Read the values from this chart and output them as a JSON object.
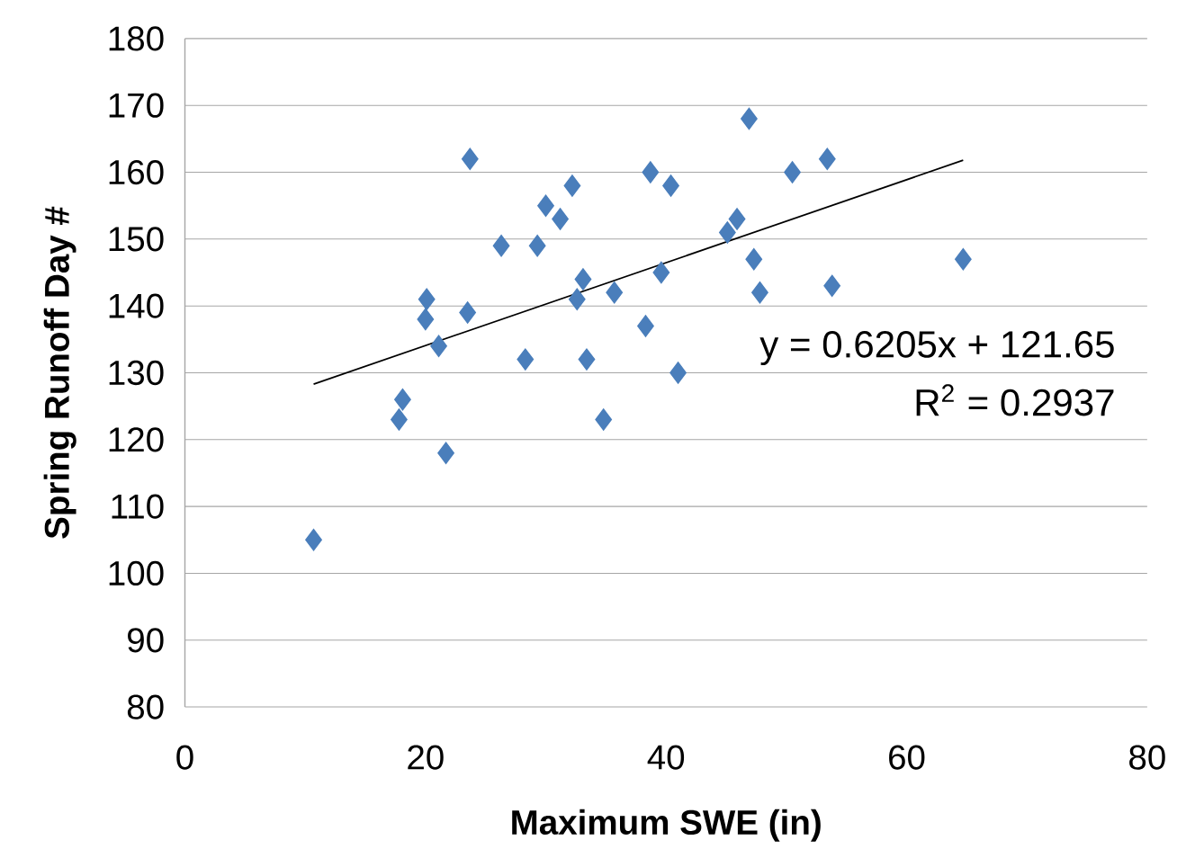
{
  "chart_data": {
    "type": "scatter",
    "xlabel": "Maximum SWE (in)",
    "ylabel": "Spring Runoff Day #",
    "xlim": [
      0,
      80
    ],
    "xticks": [
      0,
      20,
      40,
      60,
      80
    ],
    "ylim": [
      80,
      180
    ],
    "yticks": [
      80,
      90,
      100,
      110,
      120,
      130,
      140,
      150,
      160,
      170,
      180
    ],
    "grid": "y",
    "marker": "diamond",
    "series": [
      {
        "color": "#4a7ebb",
        "x": [
          10.7,
          18.1,
          17.8,
          20.1,
          20.0,
          21.1,
          21.7,
          23.5,
          23.7,
          26.3,
          28.3,
          29.3,
          30.0,
          31.2,
          32.2,
          32.6,
          33.1,
          33.4,
          34.8,
          35.7,
          38.3,
          38.7,
          39.6,
          40.4,
          41.0,
          45.1,
          45.9,
          46.9,
          47.3,
          47.8,
          50.5,
          53.4,
          53.8,
          64.7
        ],
        "values": [
          105,
          126,
          123,
          141,
          138,
          134,
          118,
          139,
          162,
          149,
          132,
          149,
          155,
          153,
          158,
          141,
          144,
          132,
          123,
          142,
          137,
          160,
          145,
          158,
          130,
          151,
          153,
          168,
          147,
          142,
          160,
          162,
          143,
          147
        ]
      },
      {
        "type": "line",
        "marker": "none",
        "color": "#000000",
        "x": [
          10.7,
          64.7
        ],
        "values": [
          128.3,
          161.8
        ]
      }
    ],
    "annotations": [
      "y = 0.6205x + 121.65",
      "R$^{2}$ = 0.2937"
    ]
  }
}
